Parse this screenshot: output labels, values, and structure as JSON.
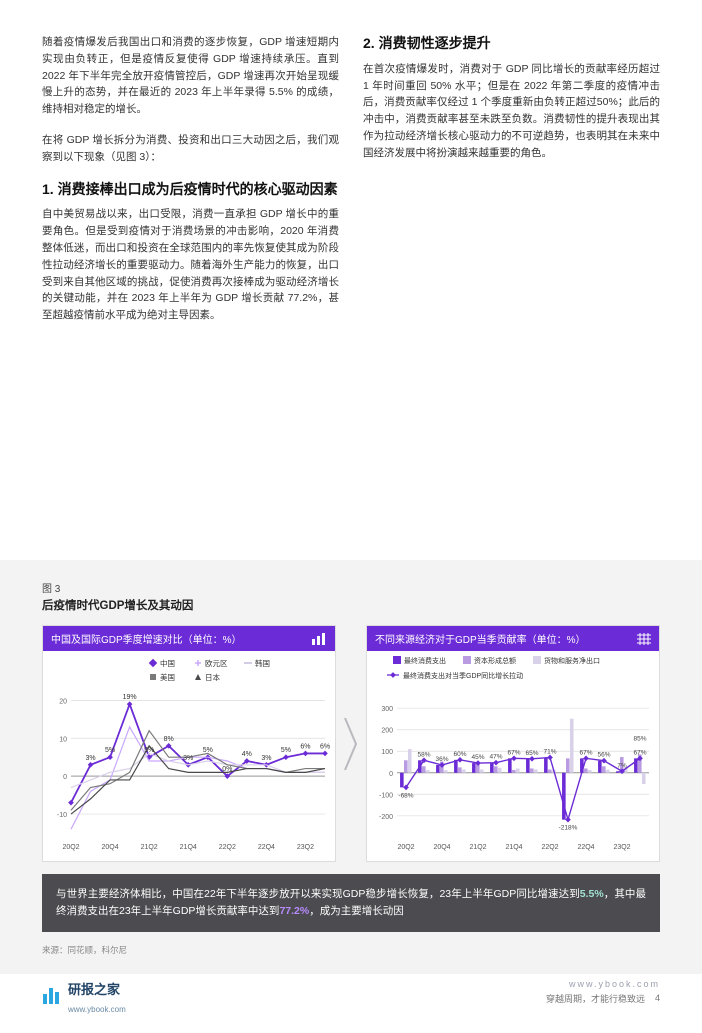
{
  "body": {
    "p1": "随着疫情爆发后我国出口和消费的逐步恢复，GDP 增速短期内实现由负转正，但是疫情反复使得 GDP 增速持续承压。直到 2022 年下半年完全放开疫情管控后，GDP 增速再次开始呈现缓慢上升的态势，并在最近的 2023 年上半年录得 5.5% 的成绩，维持相对稳定的增长。",
    "p2": "在将 GDP 增长拆分为消费、投资和出口三大动因之后，我们观察到以下现象（见图 3）：",
    "h1": "1. 消费接棒出口成为后疫情时代的核心驱动因素",
    "p3": "自中美贸易战以来，出口受限，消费一直承担 GDP 增长中的重要角色。但是受到疫情对于消费场景的冲击影响，2020 年消费整体低迷，而出口和投资在全球范围内的率先恢复使其成为阶段性拉动经济增长的重要驱动力。随着海外生产能力的恢复，出口受到来自其他区域的挑战，促使消费再次接棒成为驱动经济增长的关键动能，并在 2023 年上半年为 GDP 增长贡献 77.2%，甚至超越疫情前水平成为绝对主导因素。",
    "h2": "2. 消费韧性逐步提升",
    "p4": "在首次疫情爆发时，消费对于 GDP 同比增长的贡献率经历超过 1 年时间重回 50% 水平；但是在 2022 年第二季度的疫情冲击后，消费贡献率仅经过 1 个季度重新由负转正超过50%；此后的冲击中，消费贡献率甚至未跌至负数。消费韧性的提升表现出其作为拉动经济增长核心驱动力的不可逆趋势，也表明其在未来中国经济发展中将扮演越来越重要的角色。"
  },
  "figure": {
    "label": "图 3",
    "title": "后疫情时代GDP增长及其动因",
    "chart1": {
      "header": "中国及国际GDP季度增速对比（单位：%）",
      "series": [
        {
          "name": "中国",
          "color": "#6b2bd6"
        },
        {
          "name": "欧元区",
          "color": "#c9a8ff"
        },
        {
          "name": "韩国",
          "color": "#d4cbe6"
        },
        {
          "name": "美国",
          "color": "#7a7a7a"
        },
        {
          "name": "日本",
          "color": "#4a4a4a"
        }
      ],
      "x_labels": [
        "20Q2",
        "20Q4",
        "21Q2",
        "21Q4",
        "22Q2",
        "22Q4",
        "23Q2"
      ],
      "ylim": [
        -15,
        23
      ],
      "y_ticks": [
        -10,
        0,
        10,
        20
      ],
      "data": {
        "china": [
          -7,
          3,
          5,
          19,
          5,
          8,
          3,
          5,
          0,
          4,
          3,
          5,
          6,
          6
        ],
        "euro": [
          -14,
          -4,
          -1,
          13,
          4,
          4,
          5,
          5,
          4,
          2,
          2,
          1,
          1,
          1
        ],
        "korea": [
          -3,
          -1,
          1,
          2,
          6,
          4,
          3,
          4,
          3,
          3,
          3,
          1,
          1,
          1
        ],
        "usa": [
          -9,
          -3,
          -2,
          1,
          12,
          5,
          5,
          6,
          3,
          2,
          2,
          1,
          2,
          2
        ],
        "japan": [
          -10,
          -6,
          -1,
          -1,
          8,
          2,
          1,
          1,
          1,
          2,
          2,
          1,
          1,
          2
        ]
      },
      "label_points": [
        {
          "i": 1,
          "v": 3,
          "t": "3%"
        },
        {
          "i": 2,
          "v": 5,
          "t": "5%"
        },
        {
          "i": 3,
          "v": 19,
          "t": "19%"
        },
        {
          "i": 4,
          "v": 5,
          "t": "5%"
        },
        {
          "i": 5,
          "v": 8,
          "t": "8%"
        },
        {
          "i": 6,
          "v": 3,
          "t": "3%"
        },
        {
          "i": 7,
          "v": 5,
          "t": "5%"
        },
        {
          "i": 8,
          "v": 0,
          "t": "0%"
        },
        {
          "i": 9,
          "v": 4,
          "t": "4%"
        },
        {
          "i": 10,
          "v": 3,
          "t": "3%"
        },
        {
          "i": 11,
          "v": 5,
          "t": "5%"
        },
        {
          "i": 12,
          "v": 6,
          "t": "6%"
        },
        {
          "i": 13,
          "v": 6,
          "t": "6%"
        }
      ],
      "legend_positions": {
        "row1": [
          {
            "name": "中国",
            "x": 110,
            "color": "#6b2bd6",
            "shape": "diamond"
          },
          {
            "name": "欧元区",
            "x": 155,
            "color": "#c9a8ff",
            "shape": "plus"
          },
          {
            "name": "韩国",
            "x": 205,
            "color": "#d4cbe6",
            "shape": "line"
          }
        ],
        "row2": [
          {
            "name": "美国",
            "x": 110,
            "color": "#7a7a7a",
            "shape": "square"
          },
          {
            "name": "日本",
            "x": 155,
            "color": "#4a4a4a",
            "shape": "triangle"
          }
        ]
      }
    },
    "chart2": {
      "header": "不同来源经济对于GDP当季贡献率（单位：%）",
      "legend": [
        {
          "name": "最终消费支出",
          "type": "bar",
          "color": "#6b2bd6"
        },
        {
          "name": "资本形成总额",
          "type": "bar",
          "color": "#b89be0"
        },
        {
          "name": "货物和服务净出口",
          "type": "bar",
          "color": "#d9d0ea"
        },
        {
          "name": "最终消费支出对当季GDP同比增长拉动",
          "type": "line",
          "color": "#6b2bd6"
        }
      ],
      "x_labels": [
        "20Q2",
        "20Q4",
        "21Q2",
        "21Q4",
        "22Q2",
        "22Q4",
        "23Q2"
      ],
      "ylim": [
        -280,
        380
      ],
      "y_ticks": [
        -200,
        -100,
        0,
        100,
        200,
        300
      ],
      "bars": [
        [
          -68,
          58,
          110
        ],
        [
          58,
          30,
          12
        ],
        [
          36,
          52,
          12
        ],
        [
          60,
          25,
          15
        ],
        [
          45,
          40,
          15
        ],
        [
          47,
          30,
          23
        ],
        [
          67,
          13,
          20
        ],
        [
          65,
          20,
          15
        ],
        [
          71,
          15,
          14
        ],
        [
          -218,
          67,
          251
        ],
        [
          67,
          20,
          13
        ],
        [
          56,
          30,
          14
        ],
        [
          7,
          73,
          20
        ],
        [
          67,
          85,
          -52
        ]
      ],
      "bar_label_points": [
        {
          "i": 0,
          "v": -68,
          "t": "-68%",
          "dy": 10
        },
        {
          "i": 1,
          "v": 58,
          "t": "58%",
          "dy": -4
        },
        {
          "i": 2,
          "v": 36,
          "t": "36%",
          "dy": -4
        },
        {
          "i": 3,
          "v": 60,
          "t": "60%",
          "dy": -4
        },
        {
          "i": 4,
          "v": 45,
          "t": "45%",
          "dy": -4
        },
        {
          "i": 5,
          "v": 47,
          "t": "47%",
          "dy": -4
        },
        {
          "i": 6,
          "v": 67,
          "t": "67%",
          "dy": -4
        },
        {
          "i": 7,
          "v": 65,
          "t": "65%",
          "dy": -4
        },
        {
          "i": 8,
          "v": 71,
          "t": "71%",
          "dy": -4
        },
        {
          "i": 9,
          "v": -218,
          "t": "-218%",
          "dy": 10
        },
        {
          "i": 10,
          "v": 67,
          "t": "67%",
          "dy": -4
        },
        {
          "i": 11,
          "v": 56,
          "t": "56%",
          "dy": -4
        },
        {
          "i": 12,
          "v": 7,
          "t": "7%",
          "dy": -4
        },
        {
          "i": 13,
          "v": 67,
          "t": "67%",
          "dy": -4
        },
        {
          "i": 13,
          "v": 85,
          "t": "85%",
          "dy": -14
        }
      ],
      "line": [
        -68,
        58,
        36,
        60,
        45,
        47,
        67,
        65,
        71,
        -218,
        67,
        56,
        7,
        67
      ]
    },
    "callout_parts": [
      {
        "text": "与世界主要经济体相比，中国在22年下半年逐步放开以来实现GDP稳步增长恢复，23年上半年GDP同比增速达到",
        "cls": ""
      },
      {
        "text": "5.5%",
        "cls": "accent1"
      },
      {
        "text": "，其中最终消费支出在23年上半年GDP增长贡献率中达到",
        "cls": ""
      },
      {
        "text": "77.2%",
        "cls": "accent2"
      },
      {
        "text": "，成为主要增长动因",
        "cls": ""
      }
    ],
    "source": "来源：同花顺，科尔尼"
  },
  "footer": {
    "logo_text": "研报之家",
    "logo_sub": "www.ybook.com",
    "right": "穿越周期，才能行稳致远",
    "page": "4"
  },
  "colors": {
    "primary": "#6b2bd6",
    "grid": "#dcdcdc",
    "axis": "#888888",
    "bg_panel": "#f3f3f4",
    "callout_bg": "#4b4b50"
  }
}
